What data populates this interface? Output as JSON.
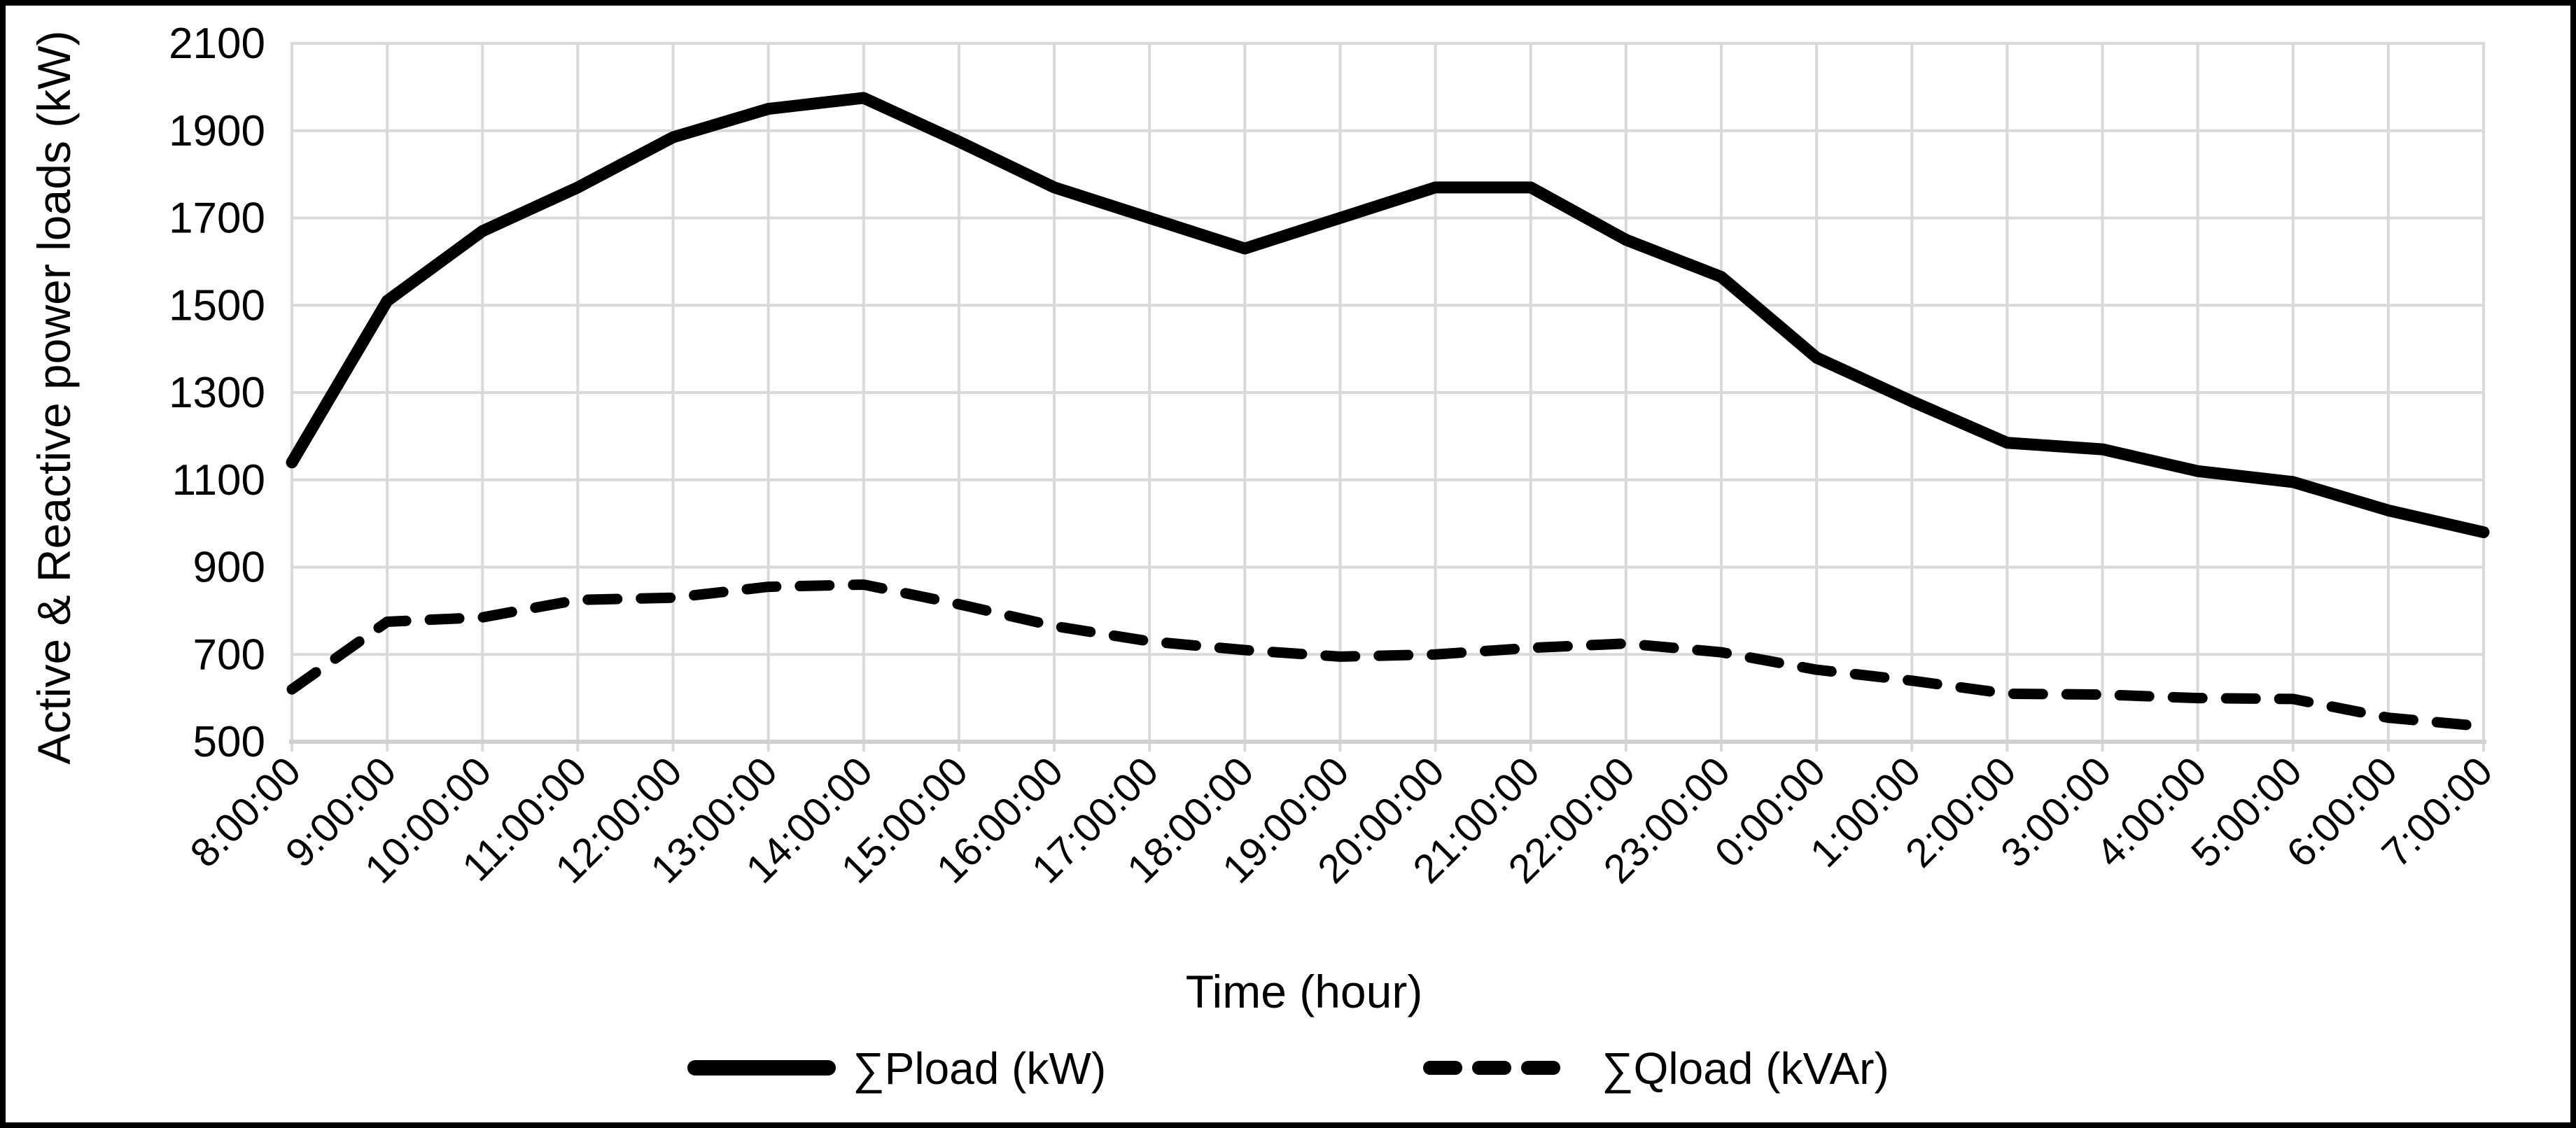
{
  "chart_data": {
    "type": "line",
    "title": "",
    "xlabel": "Time (hour)",
    "ylabel": "Active & Reactive power loads (kW)",
    "categories": [
      "8:00:00",
      "9:00:00",
      "10:00:00",
      "11:00:00",
      "12:00:00",
      "13:00:00",
      "14:00:00",
      "15:00:00",
      "16:00:00",
      "17:00:00",
      "18:00:00",
      "19:00:00",
      "20:00:00",
      "21:00:00",
      "22:00:00",
      "23:00:00",
      "0:00:00",
      "1:00:00",
      "2:00:00",
      "3:00:00",
      "4:00:00",
      "5:00:00",
      "6:00:00",
      "7:00:00"
    ],
    "series": [
      {
        "name": "∑Pload (kW)",
        "style": "solid",
        "values": [
          1140,
          1510,
          1670,
          1770,
          1885,
          1950,
          1975,
          1875,
          1770,
          1700,
          1630,
          1700,
          1770,
          1770,
          1650,
          1565,
          1380,
          1280,
          1185,
          1170,
          1120,
          1095,
          1030,
          980
        ]
      },
      {
        "name": "∑Qload (kVAr)",
        "style": "dashed",
        "values": [
          620,
          775,
          785,
          825,
          830,
          855,
          860,
          815,
          765,
          730,
          710,
          695,
          700,
          715,
          725,
          705,
          665,
          640,
          610,
          608,
          600,
          598,
          555,
          535
        ]
      }
    ],
    "ylim": [
      500,
      2100
    ],
    "yticks": [
      500,
      700,
      900,
      1100,
      1300,
      1500,
      1700,
      1900,
      2100
    ],
    "grid": true,
    "legend_position": "bottom"
  },
  "colors": {
    "line": "#000000",
    "grid": "#d9d9d9",
    "text": "#000000",
    "background": "#ffffff",
    "border": "#000000"
  }
}
